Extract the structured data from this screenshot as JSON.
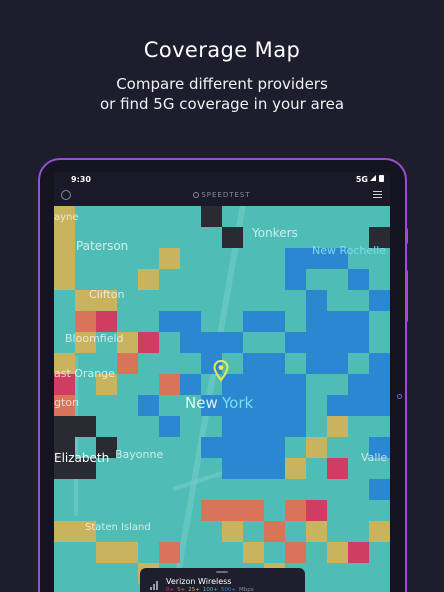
{
  "header": {
    "title": "Coverage Map",
    "subtitle_line1": "Compare different providers",
    "subtitle_line2": "or find 5G coverage in your area"
  },
  "status_bar": {
    "time": "9:30",
    "network": "5G"
  },
  "app_bar": {
    "brand": "SPEEDTEST",
    "info_icon": "info-icon",
    "menu_icon": "hamburger-menu-icon"
  },
  "map": {
    "labels": {
      "wayne": "ayne",
      "paterson": "Paterson",
      "yonkers": "Yonkers",
      "new_rochelle": "New Rochelle",
      "clifton": "Clifton",
      "bloomfield": "Bloomfield",
      "east_orange": "ast Orange",
      "new": "New",
      "york": "York",
      "newark": "gton",
      "elizabeth": "Elizabeth",
      "bayonne": "Bayonne",
      "valley": "Valle",
      "staten_island": "Staten Island"
    },
    "pin_icon": "location-pin-icon",
    "colors": {
      "teal": "#4fbdb5",
      "blue": "#2b87cf",
      "yellow": "#c8b45e",
      "orange": "#d9735a",
      "red": "#cf3d62",
      "dark": "#2a2a32"
    }
  },
  "bottom_panel": {
    "provider": "Verizon Wireless",
    "legend": [
      "0+",
      "5+",
      "25+",
      "100+",
      "500+",
      "Mbps"
    ],
    "legend_colors": [
      "#cf3d62",
      "#d9735a",
      "#c8b45e",
      "#4fbdb5",
      "#2b87cf",
      "#8a8a99"
    ]
  }
}
